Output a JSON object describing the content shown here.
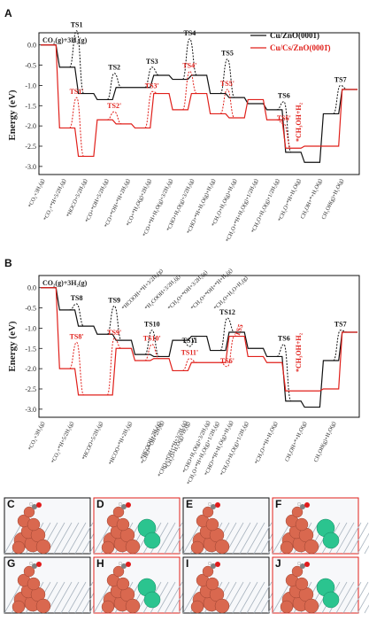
{
  "colors": {
    "series1": "#111111",
    "series2": "#e0201b",
    "slab": "#a9b4bf",
    "cu": "#d9684f",
    "cs": "#2bc48f",
    "o": "#e11b1b",
    "h": "#f4f4f4",
    "c": "#808080"
  },
  "legend": {
    "series1": "Cu/ZnO(0001̄)",
    "series2": "Cu/Cs/ZnO(0001̄)"
  },
  "chart_data": [
    {
      "panel": "A",
      "type": "line",
      "ylabel": "Energy (eV)",
      "ylim": [
        -3.2,
        0.3
      ],
      "yticks": [
        "0.0",
        "-0.5",
        "-1.0",
        "-1.5",
        "-2.0",
        "-2.5",
        "-3.0"
      ],
      "initial_label": "CO₂(g)+3H₂(g)",
      "states": [
        "*CO₂+3H₂(g)",
        "*CO₂+*H+5/2H₂(g)",
        "*HOCO+5/2H₂(g)",
        "*CO+*OH+5/2H₂(g)",
        "*CO+*OH+*H+2H₂(g)",
        "*CO+*H₂O(g)+2H₂(g)",
        "*CO+*H+H₂O(g)+3/2H₂(g)",
        "*CHO+H₂O(g)+3/2H₂(g)",
        "*CHO+*H+H₂O(g)+H₂(g)",
        "*CH₂O+H₂O(g)+H₂(g)",
        "*CH₂O+*H+H₂O(g)+1/2H₂(g)",
        "*CH₃O+H₂O(g)+1/2H₂(g)",
        "*CH₃O+*H+H₂O(g)",
        "CH₃OH+*+H₂O(g)",
        "CH₃OH(g)+H₂O(g)"
      ],
      "series": [
        {
          "name": "Cu/ZnO(0001̄)",
          "values": [
            0.0,
            -0.55,
            -1.2,
            -1.35,
            -1.05,
            -1.05,
            -0.75,
            -0.85,
            -0.75,
            -1.2,
            -1.3,
            -1.45,
            -1.6,
            -2.65,
            -2.9,
            -1.7,
            -1.1
          ],
          "ts": [
            {
              "label": "TS1",
              "value": 0.35
            },
            {
              "label": "TS2",
              "value": -0.7
            },
            {
              "label": "TS3",
              "value": -0.55
            },
            {
              "label": "TS4",
              "value": 0.15
            },
            {
              "label": "TS5",
              "value": -0.35
            },
            {
              "label": "TS6",
              "value": -1.4
            },
            {
              "label": "TS7",
              "value": -1.0
            }
          ]
        },
        {
          "name": "Cu/Cs/ZnO(0001̄)",
          "values": [
            0.0,
            -2.05,
            -2.75,
            -1.85,
            -1.95,
            -2.05,
            -1.2,
            -1.6,
            -1.2,
            -1.7,
            -1.8,
            -1.35,
            -1.85,
            -2.55,
            -2.5,
            -2.5,
            -1.1
          ],
          "ts": [
            {
              "label": "TS1'",
              "value": -1.3
            },
            {
              "label": "TS2'",
              "value": -1.65
            },
            {
              "label": "TS3'",
              "value": -1.15
            },
            {
              "label": "TS4'",
              "value": -0.65
            },
            {
              "label": "TS5'",
              "value": -1.1
            },
            {
              "label": "TS6'",
              "value": -1.95
            }
          ]
        }
      ],
      "annotation": "*CH₃OH+H₂"
    },
    {
      "panel": "B",
      "type": "line",
      "ylabel": "Energy (eV)",
      "ylim": [
        -3.2,
        0.3
      ],
      "yticks": [
        "0.0",
        "-0.5",
        "-1.0",
        "-1.5",
        "-2.0",
        "-2.5",
        "-3.0"
      ],
      "initial_label": "CO₂(g)+3H₂(g)",
      "states_bottom": [
        "*CO₂+3H₂(g)",
        "*CO₂+*H+5/2H₂(g)",
        "*HCOO+5/2H₂(g)",
        "*HCOO+*H+2H₂(g)",
        "*HCOOH+2H₂(g)",
        "*CH₂O+H₂O(g)+H₂(g)",
        "*CH₂O+*H+H₂O(g)+1/2H₂(g)",
        "*CH₃O+H₂O(g)+1/2H₂(g)",
        "*CH₃O+*H+H₂O(g)",
        "CH₃OH+*+H₂O(g)",
        "CH₃OH(g)+H₂O(g)"
      ],
      "states_top": [
        "*HCOOH+*H+3/2H₂(g)",
        "*H₂COOH+3/2H₂(g)",
        "*CH₂O+*OH+3/2H₂(g)",
        "*CH₂O+*OH+*H+H₂(g)",
        "*CH₂O+H₂O+H₂(g)"
      ],
      "states_red": [
        "*CHO+*OH+2H₂(g)",
        "*CHO+*OH+*H+3/2H₂(g)",
        "*CHO+H₂O(g)+3/2H₂(g)",
        "*CHO+*H+H₂O(g)+H₂(g)"
      ],
      "series": [
        {
          "name": "Cu/ZnO(0001̄)",
          "values": [
            0.0,
            -0.55,
            -0.95,
            -1.15,
            -1.3,
            -1.65,
            -1.7,
            -1.3,
            -1.2,
            -1.55,
            -1.1,
            -1.5,
            -1.7,
            -2.8,
            -2.95,
            -1.8,
            -1.1
          ],
          "ts": [
            {
              "label": "TS8",
              "value": -0.4
            },
            {
              "label": "TS9",
              "value": -0.45
            },
            {
              "label": "TS10",
              "value": -1.05
            },
            {
              "label": "TS11",
              "value": -1.45
            },
            {
              "label": "TS12",
              "value": -0.75
            },
            {
              "label": "TS6",
              "value": -1.4
            },
            {
              "label": "TS7",
              "value": -1.05
            }
          ]
        },
        {
          "name": "Cu/Cs/ZnO(0001̄)",
          "values": [
            0.0,
            -2.0,
            -2.65,
            -2.65,
            -1.5,
            -1.8,
            -1.75,
            -2.05,
            -1.85,
            -1.85,
            -1.2,
            -1.7,
            -1.85,
            -2.55,
            -2.55,
            -2.5,
            -1.1
          ],
          "ts": [
            {
              "label": "TS8'",
              "value": -1.35
            },
            {
              "label": "TS9'",
              "value": -1.25
            },
            {
              "label": "TS10'",
              "value": -1.4
            },
            {
              "label": "TS11'",
              "value": -1.75
            },
            {
              "label": "TS6'",
              "value": -1.95
            }
          ]
        }
      ],
      "annotations": [
        "*CH₃OH+H₂",
        "TS5"
      ]
    }
  ],
  "structures": [
    {
      "letter": "C",
      "cs": false,
      "frame": "black"
    },
    {
      "letter": "D",
      "cs": true,
      "frame": "red"
    },
    {
      "letter": "E",
      "cs": false,
      "frame": "black"
    },
    {
      "letter": "F",
      "cs": true,
      "frame": "red"
    },
    {
      "letter": "G",
      "cs": false,
      "frame": "black"
    },
    {
      "letter": "H",
      "cs": true,
      "frame": "red"
    },
    {
      "letter": "I",
      "cs": false,
      "frame": "black"
    },
    {
      "letter": "J",
      "cs": true,
      "frame": "red"
    }
  ]
}
